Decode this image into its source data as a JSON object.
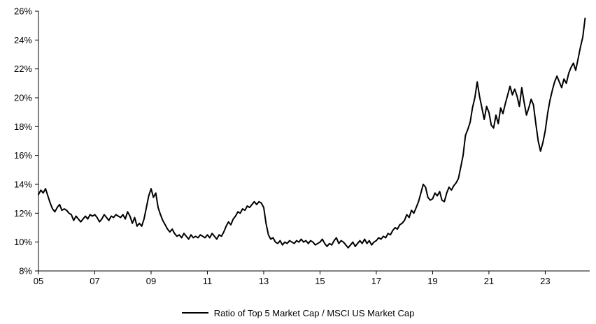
{
  "chart_data": {
    "type": "line",
    "title": "",
    "legend": "Ratio of Top 5 Market Cap / MSCI US Market Cap",
    "legend_position": "bottom-center",
    "grid": false,
    "line_color": "#000000",
    "x_start_year": 2005,
    "points_per_year": 12,
    "xlim": [
      2005,
      2024.58
    ],
    "ylim": [
      8,
      26
    ],
    "ytick_values": [
      8,
      10,
      12,
      14,
      16,
      18,
      20,
      22,
      24,
      26
    ],
    "ytick_labels": [
      "8%",
      "10%",
      "12%",
      "14%",
      "16%",
      "18%",
      "20%",
      "22%",
      "24%",
      "26%"
    ],
    "xtick_values": [
      2005,
      2007,
      2009,
      2011,
      2013,
      2015,
      2017,
      2019,
      2021,
      2023
    ],
    "xtick_labels": [
      "05",
      "07",
      "09",
      "11",
      "13",
      "15",
      "17",
      "19",
      "21",
      "23"
    ],
    "values": [
      13.3,
      13.6,
      13.4,
      13.7,
      13.2,
      12.7,
      12.3,
      12.1,
      12.4,
      12.6,
      12.2,
      12.3,
      12.2,
      12.0,
      11.9,
      11.5,
      11.8,
      11.6,
      11.4,
      11.6,
      11.8,
      11.6,
      11.9,
      11.8,
      11.9,
      11.7,
      11.4,
      11.6,
      11.9,
      11.7,
      11.5,
      11.8,
      11.7,
      11.9,
      11.8,
      11.7,
      11.9,
      11.6,
      12.1,
      11.8,
      11.3,
      11.7,
      11.1,
      11.3,
      11.1,
      11.6,
      12.4,
      13.2,
      13.7,
      13.1,
      13.4,
      12.4,
      11.9,
      11.5,
      11.2,
      10.9,
      10.7,
      10.9,
      10.6,
      10.4,
      10.5,
      10.3,
      10.6,
      10.4,
      10.2,
      10.5,
      10.3,
      10.4,
      10.3,
      10.5,
      10.4,
      10.3,
      10.5,
      10.3,
      10.6,
      10.4,
      10.2,
      10.5,
      10.4,
      10.7,
      11.1,
      11.4,
      11.2,
      11.6,
      11.8,
      12.1,
      12.0,
      12.3,
      12.2,
      12.5,
      12.4,
      12.6,
      12.8,
      12.6,
      12.8,
      12.7,
      12.4,
      11.3,
      10.5,
      10.2,
      10.3,
      10.0,
      9.9,
      10.1,
      9.8,
      10.0,
      9.9,
      10.1,
      10.0,
      9.9,
      10.1,
      10.0,
      10.2,
      10.0,
      10.1,
      9.9,
      10.1,
      10.0,
      9.8,
      9.9,
      10.0,
      10.2,
      9.9,
      9.7,
      9.9,
      9.8,
      10.1,
      10.3,
      9.9,
      10.1,
      10.0,
      9.8,
      9.6,
      9.8,
      10.0,
      9.7,
      9.9,
      10.1,
      9.9,
      10.2,
      9.9,
      10.1,
      9.8,
      10.0,
      10.1,
      10.3,
      10.2,
      10.4,
      10.3,
      10.6,
      10.5,
      10.8,
      11.0,
      10.9,
      11.2,
      11.3,
      11.5,
      11.9,
      11.7,
      12.2,
      12.0,
      12.4,
      12.8,
      13.4,
      14.0,
      13.8,
      13.1,
      12.9,
      13.0,
      13.4,
      13.2,
      13.5,
      12.9,
      12.8,
      13.4,
      13.8,
      13.6,
      13.9,
      14.1,
      14.4,
      15.2,
      16.0,
      17.4,
      17.8,
      18.3,
      19.3,
      20.0,
      21.1,
      20.1,
      19.3,
      18.5,
      19.4,
      19.0,
      18.1,
      17.9,
      18.8,
      18.2,
      19.3,
      18.9,
      19.6,
      20.2,
      20.8,
      20.2,
      20.6,
      20.1,
      19.4,
      20.7,
      19.7,
      18.8,
      19.3,
      19.9,
      19.5,
      18.2,
      17.0,
      16.3,
      16.9,
      17.7,
      18.9,
      19.8,
      20.5,
      21.1,
      21.5,
      21.1,
      20.7,
      21.3,
      21.0,
      21.7,
      22.1,
      22.4,
      21.9,
      22.7,
      23.5,
      24.2,
      25.5
    ]
  }
}
